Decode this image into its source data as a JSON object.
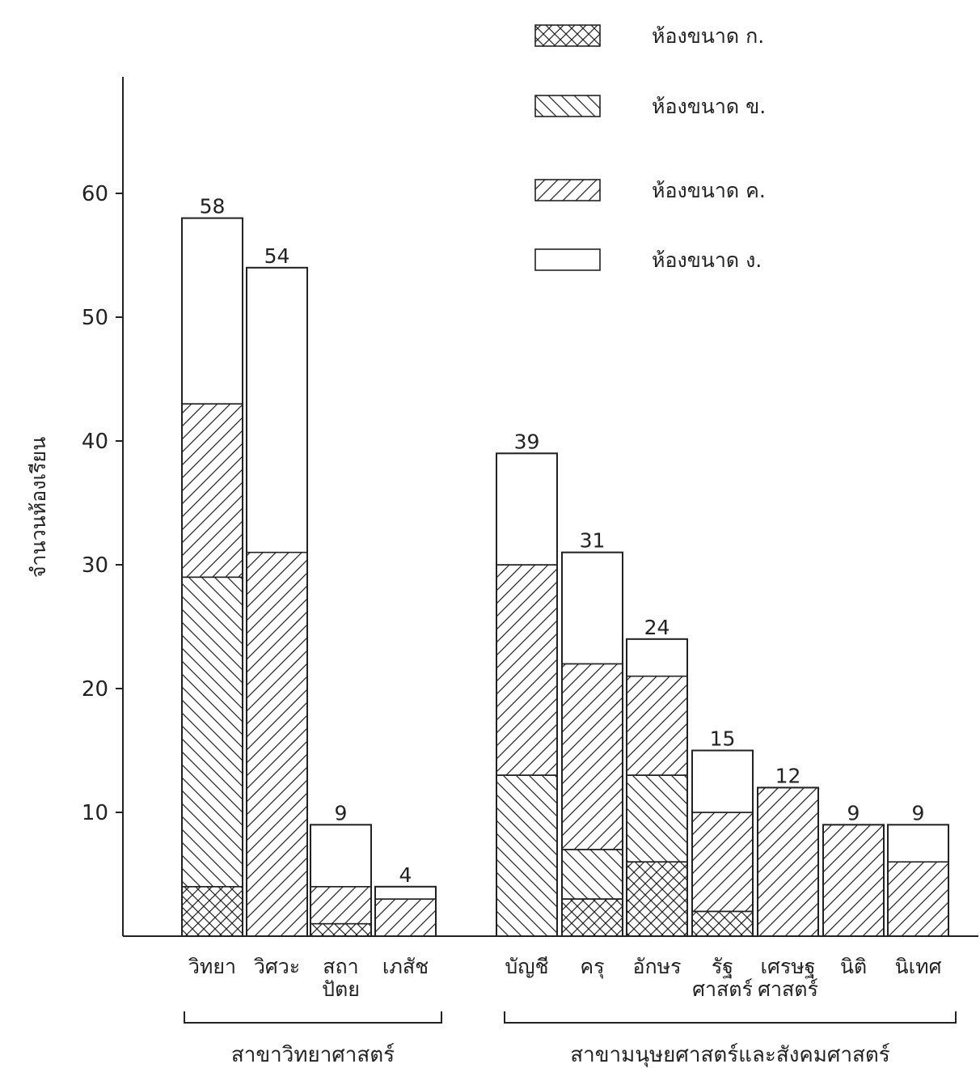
{
  "chart_data": {
    "type": "bar",
    "stacked": true,
    "title": "",
    "xlabel": "",
    "ylabel": "จำนวนห้องเรียน",
    "ylim": [
      0,
      65
    ],
    "yticks": [
      10,
      20,
      30,
      40,
      50,
      60
    ],
    "grid": false,
    "legend_position": "top-right",
    "categories": [
      {
        "label": [
          "วิทยา"
        ],
        "group": 0
      },
      {
        "label": [
          "วิศวะ"
        ],
        "group": 0
      },
      {
        "label": [
          "สถา",
          "ปัตย"
        ],
        "group": 0
      },
      {
        "label": [
          "เภสัช"
        ],
        "group": 0
      },
      {
        "label": [
          "บัญชี"
        ],
        "group": 1
      },
      {
        "label": [
          "ครุ"
        ],
        "group": 1
      },
      {
        "label": [
          "อักษร"
        ],
        "group": 1
      },
      {
        "label": [
          "รัฐ",
          "ศาสตร์"
        ],
        "group": 1
      },
      {
        "label": [
          "เศรษฐ",
          "ศาสตร์"
        ],
        "group": 1
      },
      {
        "label": [
          "นิติ"
        ],
        "group": 1
      },
      {
        "label": [
          "นิเทศ"
        ],
        "group": 1
      }
    ],
    "groups": [
      "สาขาวิทยาศาสตร์",
      "สาขามนุษยศาสตร์และสังคมศาสตร์"
    ],
    "series": [
      {
        "name": "ห้องขนาด ก.",
        "pattern": "crosshatch",
        "values": [
          4,
          0,
          1,
          0,
          0,
          3,
          6,
          2,
          0,
          0,
          0
        ]
      },
      {
        "name": "ห้องขนาด ข.",
        "pattern": "backslash",
        "values": [
          25,
          0,
          0,
          0,
          13,
          4,
          7,
          0,
          0,
          0,
          0
        ]
      },
      {
        "name": "ห้องขนาด ค.",
        "pattern": "slash",
        "values": [
          14,
          31,
          3,
          3,
          17,
          15,
          8,
          8,
          12,
          9,
          6
        ]
      },
      {
        "name": "ห้องขนาด ง.",
        "pattern": "blank",
        "values": [
          15,
          23,
          5,
          1,
          9,
          9,
          3,
          5,
          0,
          0,
          3
        ]
      }
    ],
    "totals": [
      58,
      54,
      9,
      4,
      39,
      31,
      24,
      15,
      12,
      9,
      9
    ]
  }
}
